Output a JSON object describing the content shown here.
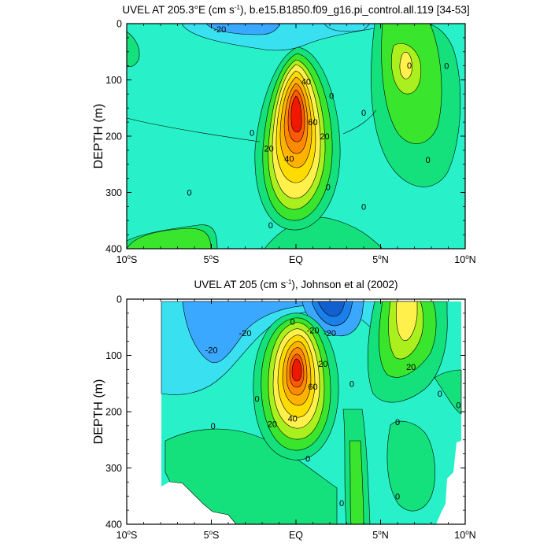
{
  "chart_data": [
    {
      "type": "contour",
      "title": "UVEL AT 205.3°E (cm s",
      "title_sup": "-1",
      "title_tail": "), b.e15.B1850.f09_g16.pi_control.all.119 [34-53]",
      "ylabel": "DEPTH (m)",
      "xlabel": "",
      "xlim": [
        -10,
        10
      ],
      "ylim": [
        0,
        400
      ],
      "y_reversed": true,
      "x_ticks": [
        {
          "v": -10,
          "label": "10",
          "unit": "S"
        },
        {
          "v": -5,
          "label": "5",
          "unit": "S"
        },
        {
          "v": 0,
          "label": "EQ",
          "unit": ""
        },
        {
          "v": 5,
          "label": "5",
          "unit": "N"
        },
        {
          "v": 10,
          "label": "10",
          "unit": "N"
        }
      ],
      "y_ticks": [
        0,
        100,
        200,
        300,
        400
      ],
      "contour_labels": [
        {
          "text": "-20",
          "x": -4.5,
          "y": 10
        },
        {
          "text": "40",
          "x": 0.6,
          "y": 103
        },
        {
          "text": "60",
          "x": 1.0,
          "y": 175
        },
        {
          "text": "20",
          "x": -1.6,
          "y": 222
        },
        {
          "text": "40",
          "x": -0.4,
          "y": 240
        },
        {
          "text": "20",
          "x": 1.7,
          "y": 200
        },
        {
          "text": "0",
          "x": -2.6,
          "y": 194
        },
        {
          "text": "0",
          "x": 2.1,
          "y": 128
        },
        {
          "text": "0",
          "x": 4.0,
          "y": 158
        },
        {
          "text": "0",
          "x": 6.7,
          "y": 74
        },
        {
          "text": "0",
          "x": 8.9,
          "y": 75
        },
        {
          "text": "0",
          "x": 7.8,
          "y": 242
        },
        {
          "text": "0",
          "x": 1.9,
          "y": 290
        },
        {
          "text": "0",
          "x": 4.0,
          "y": 325
        },
        {
          "text": "0",
          "x": -6.3,
          "y": 300
        },
        {
          "text": "0",
          "x": -1.5,
          "y": 358
        }
      ]
    },
    {
      "type": "contour",
      "title": "UVEL AT 205 (cm s",
      "title_sup": "-1",
      "title_tail": "), Johnson et al (2002)",
      "ylabel": "DEPTH (m)",
      "xlabel": "",
      "xlim": [
        -10,
        10
      ],
      "ylim": [
        0,
        400
      ],
      "y_reversed": true,
      "x_ticks": [
        {
          "v": -10,
          "label": "10",
          "unit": "S"
        },
        {
          "v": -5,
          "label": "5",
          "unit": "S"
        },
        {
          "v": 0,
          "label": "EQ",
          "unit": ""
        },
        {
          "v": 5,
          "label": "5",
          "unit": "N"
        },
        {
          "v": 10,
          "label": "10",
          "unit": "N"
        }
      ],
      "y_ticks": [
        0,
        100,
        200,
        300,
        400
      ],
      "contour_labels": [
        {
          "text": "-20",
          "x": 1.0,
          "y": 55
        },
        {
          "text": "-20",
          "x": 2.0,
          "y": 60
        },
        {
          "text": "0",
          "x": -0.2,
          "y": 40
        },
        {
          "text": "20",
          "x": 1.6,
          "y": 115
        },
        {
          "text": "60",
          "x": 1.0,
          "y": 155
        },
        {
          "text": "40",
          "x": -0.2,
          "y": 212
        },
        {
          "text": "20",
          "x": -1.4,
          "y": 222
        },
        {
          "text": "0",
          "x": 3.3,
          "y": 150
        },
        {
          "text": "-20",
          "x": -5.0,
          "y": 90
        },
        {
          "text": "-20",
          "x": -3.0,
          "y": 60
        },
        {
          "text": "20",
          "x": 6.8,
          "y": 120
        },
        {
          "text": "0",
          "x": -2.3,
          "y": 177
        },
        {
          "text": "0",
          "x": -4.9,
          "y": 225
        },
        {
          "text": "0",
          "x": 0.7,
          "y": 283
        },
        {
          "text": "0",
          "x": 2.7,
          "y": 362
        },
        {
          "text": "0",
          "x": 6.0,
          "y": 218
        },
        {
          "text": "0",
          "x": 8.5,
          "y": 168
        },
        {
          "text": "0",
          "x": 9.6,
          "y": 188
        },
        {
          "text": "0",
          "x": 6.0,
          "y": 350
        }
      ]
    }
  ],
  "colors": {
    "band_m30": "#1a7fe8",
    "band_m20": "#3aa8ff",
    "band_m10": "#38e0f0",
    "band_0": "#28f0c8",
    "band_10": "#14e07c",
    "band_20": "#39e62d",
    "band_30": "#aaf01e",
    "band_40": "#fff04c",
    "band_50": "#ffdc00",
    "band_60": "#ffb300",
    "band_70": "#ff8a00",
    "band_80": "#ff5a00",
    "band_90": "#f01800"
  }
}
